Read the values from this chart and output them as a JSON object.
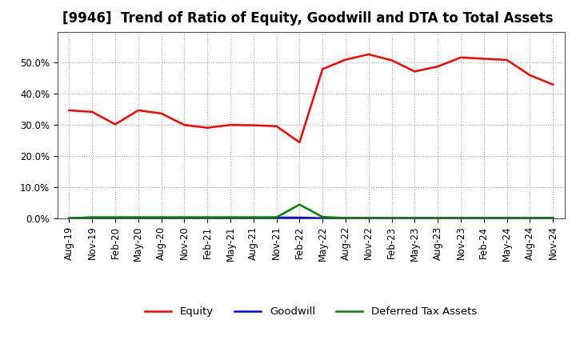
{
  "title": "[9946]  Trend of Ratio of Equity, Goodwill and DTA to Total Assets",
  "x_labels": [
    "Aug-19",
    "Nov-19",
    "Feb-20",
    "May-20",
    "Aug-20",
    "Nov-20",
    "Feb-21",
    "May-21",
    "Aug-21",
    "Nov-21",
    "Feb-22",
    "May-22",
    "Aug-22",
    "Nov-22",
    "Feb-23",
    "May-23",
    "Aug-23",
    "Nov-23",
    "Feb-24",
    "May-24",
    "Aug-24",
    "Nov-24"
  ],
  "equity": [
    0.347,
    0.342,
    0.302,
    0.347,
    0.337,
    0.3,
    0.291,
    0.3,
    0.299,
    0.296,
    0.244,
    0.48,
    0.51,
    0.527,
    0.508,
    0.472,
    0.488,
    0.517,
    0.513,
    0.509,
    0.46,
    0.43
  ],
  "goodwill": [
    0.0,
    0.002,
    0.002,
    0.002,
    0.002,
    0.002,
    0.002,
    0.002,
    0.002,
    0.002,
    0.002,
    0.0,
    0.0,
    0.0,
    0.0,
    0.0,
    0.0,
    0.0,
    0.0,
    0.0,
    0.0,
    0.0
  ],
  "dta": [
    0.0,
    0.003,
    0.003,
    0.003,
    0.003,
    0.003,
    0.003,
    0.003,
    0.003,
    0.003,
    0.044,
    0.004,
    0.001,
    0.001,
    0.001,
    0.001,
    0.001,
    0.001,
    0.001,
    0.001,
    0.001,
    0.001
  ],
  "equity_color": "#ff0000",
  "goodwill_color": "#0000ff",
  "dta_color": "#008000",
  "ylim": [
    0.0,
    0.6
  ],
  "yticks": [
    0.0,
    0.1,
    0.2,
    0.3,
    0.4,
    0.5
  ],
  "background_color": "#ffffff",
  "plot_bg_color": "#ffffff",
  "grid_color": "#aaaaaa",
  "title_fontsize": 12,
  "tick_fontsize": 8.5,
  "legend_labels": [
    "Equity",
    "Goodwill",
    "Deferred Tax Assets"
  ]
}
